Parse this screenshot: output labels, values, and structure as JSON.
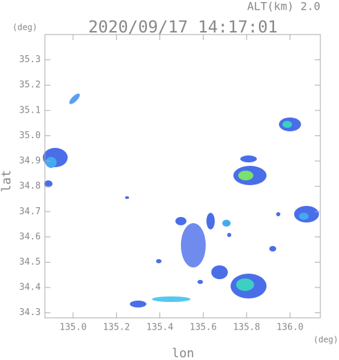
{
  "chart_data": {
    "type": "map",
    "title": "2020/09/17 14:17:01",
    "altitude_label": "ALT(km)  2.0",
    "x_label": "lon",
    "y_label": "lat",
    "x_unit": "(deg)",
    "y_unit": "(deg)",
    "xlim": [
      134.87,
      136.14
    ],
    "ylim": [
      34.28,
      35.4
    ],
    "xticks": [
      {
        "value": 135,
        "label": "135.0"
      },
      135.2,
      135.4,
      135.6,
      135.8,
      {
        "value": 136,
        "label": "136.0"
      }
    ],
    "yticks": [
      34.3,
      34.4,
      34.5,
      34.6,
      34.7,
      34.8,
      34.9,
      {
        "value": 35,
        "label": "35.0"
      },
      35.1,
      35.2,
      35.3
    ]
  }
}
